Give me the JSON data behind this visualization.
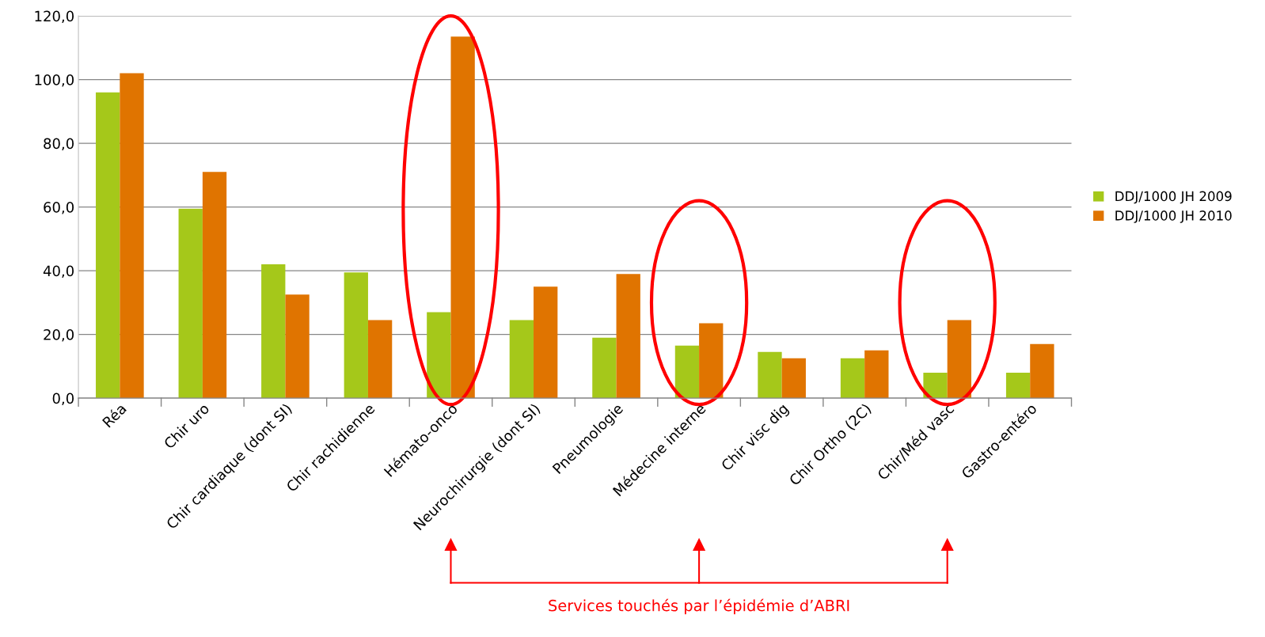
{
  "chart_data": {
    "type": "bar",
    "categories": [
      "Réa",
      "Chir uro",
      "Chir cardiaque (dont SI)",
      "Chir rachidienne",
      "Hémato-onco",
      "Neurochirurgie (dont SI)",
      "Pneumologie",
      "Médecine interne",
      "Chir visc dig",
      "Chir Ortho (2C)",
      "Chir/Méd vasc",
      "Gastro-entéro"
    ],
    "series": [
      {
        "name": "DDJ/1000 JH 2009",
        "color": "#a5c81a",
        "values": [
          96,
          59.5,
          42,
          39.5,
          27,
          24.5,
          19,
          16.5,
          14.5,
          12.5,
          8,
          8
        ]
      },
      {
        "name": "DDJ/1000 JH 2010",
        "color": "#e07400",
        "values": [
          102,
          71,
          32.5,
          24.5,
          113.5,
          35,
          39,
          23.5,
          12.5,
          15,
          24.5,
          17
        ]
      }
    ],
    "ylim": [
      0,
      120
    ],
    "yticks": [
      {
        "value": 0,
        "label": "0,0"
      },
      {
        "value": 20,
        "label": "20,0"
      },
      {
        "value": 40,
        "label": "40,0"
      },
      {
        "value": 60,
        "label": "60,0"
      },
      {
        "value": 80,
        "label": "80,0"
      },
      {
        "value": 100,
        "label": "100,0"
      },
      {
        "value": 120,
        "label": "120,0"
      }
    ],
    "grid": "y",
    "legend": "right",
    "annotations": [
      "Services touchés par l’épidémie d’ABRI"
    ]
  }
}
